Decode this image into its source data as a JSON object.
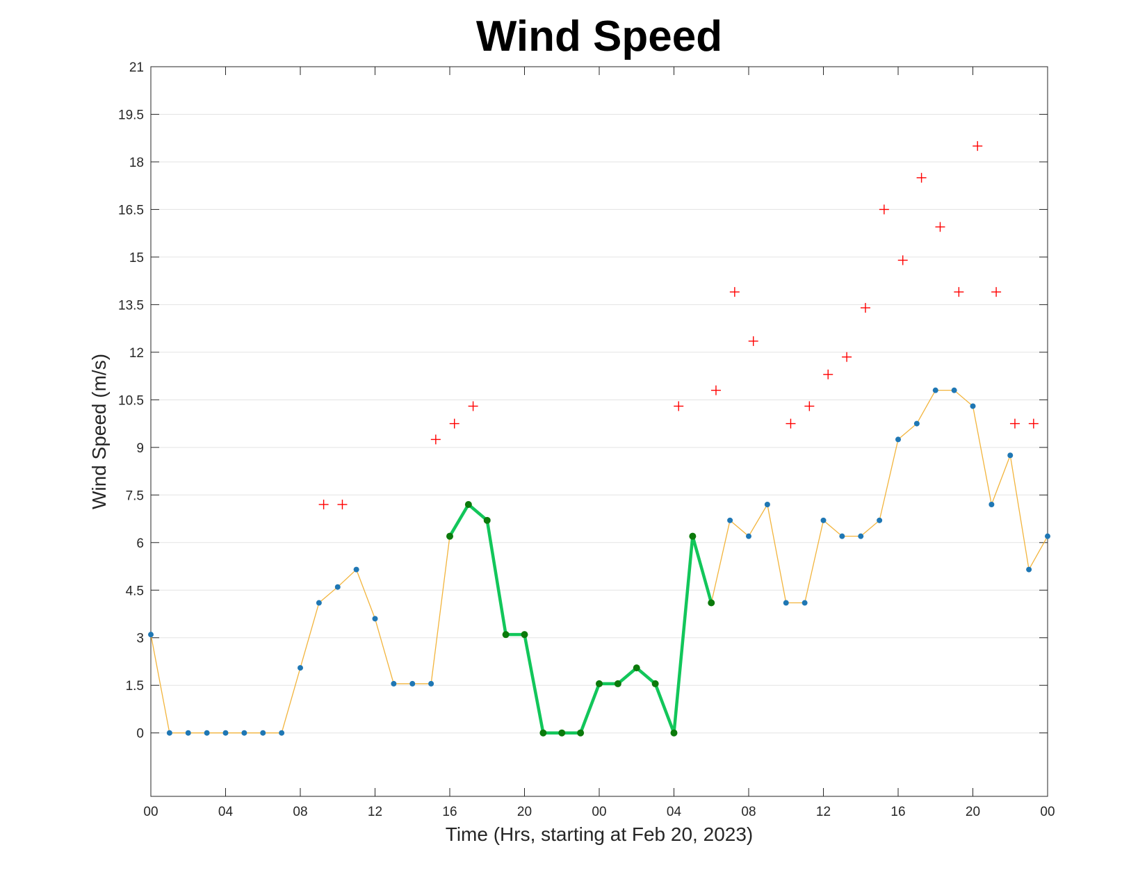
{
  "chart_data": {
    "type": "line",
    "title": "Wind Speed",
    "xlabel": "Time (Hrs, starting at Feb 20, 2023)",
    "ylabel": "Wind Speed (m/s)",
    "xlim": [
      0,
      48
    ],
    "ylim": [
      -2,
      21
    ],
    "x_ticks": [
      0,
      4,
      8,
      12,
      16,
      20,
      24,
      28,
      32,
      36,
      40,
      44,
      48
    ],
    "x_tick_labels": [
      "00",
      "04",
      "08",
      "12",
      "16",
      "20",
      "00",
      "04",
      "08",
      "12",
      "16",
      "20",
      "00"
    ],
    "y_ticks": [
      0,
      1.5,
      3,
      4.5,
      6,
      7.5,
      9,
      10.5,
      12,
      13.5,
      15,
      16.5,
      18,
      19.5,
      21
    ],
    "y_tick_labels": [
      "0",
      "1.5",
      "3",
      "4.5",
      "6",
      "7.5",
      "9",
      "10.5",
      "12",
      "13.5",
      "15",
      "16.5",
      "18",
      "19.5",
      "21"
    ],
    "grid": "horizontal",
    "colors": {
      "line": "#F2B43C",
      "marker": "#1F77B4",
      "highlight_line": "#12C65A",
      "highlight_marker": "#0B7A0B",
      "gust": "#FF0000"
    },
    "series": [
      {
        "style": "thin line with dot markers",
        "x": [
          0,
          1,
          2,
          3,
          4,
          5,
          6,
          7,
          8,
          9,
          10,
          11,
          12,
          13,
          14,
          15,
          16,
          17,
          18,
          19,
          20,
          21,
          22,
          23,
          24,
          25,
          26,
          27,
          28,
          29,
          30,
          31,
          32,
          33,
          34,
          35,
          36,
          37,
          38,
          39,
          40,
          41,
          42,
          43,
          44,
          45,
          46,
          47,
          48
        ],
        "y": [
          3.1,
          0,
          0,
          0,
          0,
          0,
          0,
          0,
          2.05,
          4.1,
          4.6,
          5.15,
          3.6,
          1.55,
          1.55,
          1.55,
          6.2,
          7.2,
          6.7,
          3.1,
          3.1,
          0,
          0,
          0,
          1.55,
          1.55,
          2.05,
          1.55,
          0,
          6.2,
          4.1,
          6.7,
          6.2,
          7.2,
          4.1,
          4.1,
          6.7,
          6.2,
          6.2,
          6.7,
          9.25,
          9.75,
          10.8,
          10.8,
          10.3,
          7.2,
          8.75,
          5.15,
          6.2
        ]
      },
      {
        "style": "thick highlighted segments",
        "segments": [
          {
            "x": [
              16,
              17,
              18,
              19,
              20,
              21,
              22,
              23,
              24,
              25,
              26,
              27,
              28,
              29,
              30
            ],
            "y": [
              6.2,
              7.2,
              6.7,
              3.1,
              3.1,
              0,
              0,
              0,
              1.55,
              1.55,
              2.05,
              1.55,
              0,
              6.2,
              4.1
            ]
          }
        ]
      },
      {
        "style": "plus markers",
        "x": [
          9.25,
          10.25,
          15.25,
          16.25,
          17.25,
          28.25,
          30.25,
          31.25,
          32.25,
          34.25,
          35.25,
          36.25,
          37.25,
          38.25,
          39.25,
          40.25,
          41.25,
          42.25,
          43.25,
          44.25,
          45.25,
          46.25,
          47.25
        ],
        "y": [
          7.2,
          7.2,
          9.25,
          9.75,
          10.3,
          10.3,
          10.8,
          13.9,
          12.35,
          9.75,
          10.3,
          11.3,
          11.85,
          13.4,
          16.5,
          14.9,
          17.5,
          15.95,
          13.9,
          18.5,
          13.9,
          9.75,
          9.75
        ]
      }
    ]
  }
}
